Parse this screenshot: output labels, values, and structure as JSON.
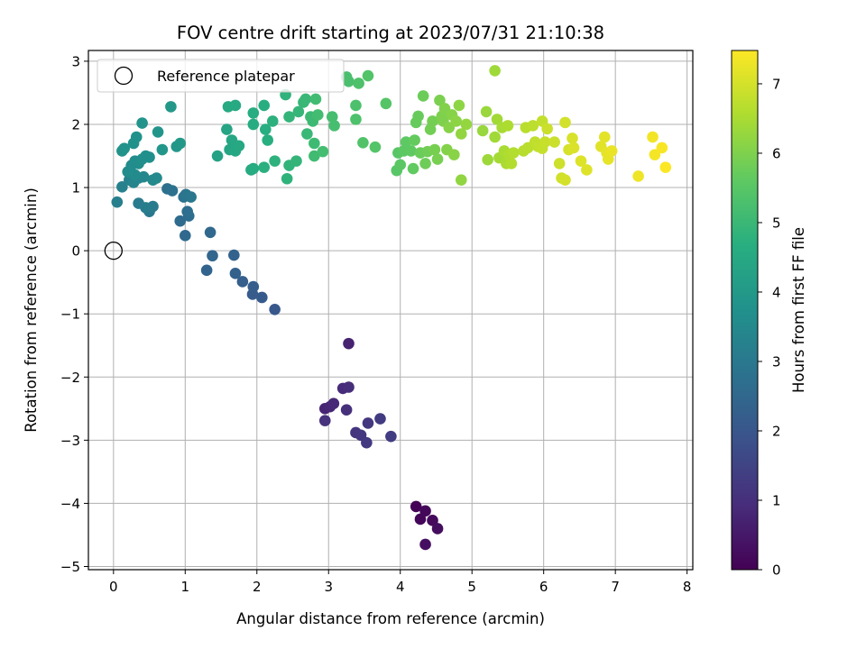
{
  "chart_data": {
    "type": "scatter",
    "title": "FOV centre drift starting at 2023/07/31 21:10:38",
    "xlabel": "Angular distance from reference (arcmin)",
    "ylabel": "Rotation from reference (arcmin)",
    "colorbar_label": "Hours from first FF file",
    "xlim": [
      -0.35,
      8.08
    ],
    "ylim": [
      -5.05,
      3.17
    ],
    "x_ticks": [
      0,
      1,
      2,
      3,
      4,
      5,
      6,
      7,
      8
    ],
    "y_ticks": [
      -5,
      -4,
      -3,
      -2,
      -1,
      0,
      1,
      2,
      3
    ],
    "colorbar_ticks": [
      0,
      1,
      2,
      3,
      4,
      5,
      6,
      7
    ],
    "colorbar_range": [
      0,
      7.48
    ],
    "colormap": "viridis",
    "grid": true,
    "legend": {
      "position": "top-left",
      "entries": [
        "Reference platepar"
      ]
    },
    "reference_point": {
      "x": 0,
      "y": 0
    },
    "points": [
      {
        "x": 4.22,
        "y": -4.05,
        "t": 0.05
      },
      {
        "x": 4.28,
        "y": -4.25,
        "t": 0.1
      },
      {
        "x": 4.35,
        "y": -4.12,
        "t": 0.15
      },
      {
        "x": 4.45,
        "y": -4.27,
        "t": 0.2
      },
      {
        "x": 4.52,
        "y": -4.4,
        "t": 0.25
      },
      {
        "x": 4.35,
        "y": -4.65,
        "t": 0.3
      },
      {
        "x": 3.28,
        "y": -1.47,
        "t": 0.7
      },
      {
        "x": 2.95,
        "y": -2.5,
        "t": 0.75
      },
      {
        "x": 3.02,
        "y": -2.47,
        "t": 0.8
      },
      {
        "x": 3.07,
        "y": -2.42,
        "t": 0.85
      },
      {
        "x": 3.2,
        "y": -2.18,
        "t": 0.9
      },
      {
        "x": 3.28,
        "y": -2.16,
        "t": 0.95
      },
      {
        "x": 3.25,
        "y": -2.52,
        "t": 1.0
      },
      {
        "x": 2.95,
        "y": -2.69,
        "t": 1.05
      },
      {
        "x": 3.38,
        "y": -2.88,
        "t": 1.1
      },
      {
        "x": 3.45,
        "y": -2.92,
        "t": 1.15
      },
      {
        "x": 3.55,
        "y": -2.73,
        "t": 1.2
      },
      {
        "x": 3.53,
        "y": -3.04,
        "t": 1.25
      },
      {
        "x": 3.72,
        "y": -2.66,
        "t": 1.3
      },
      {
        "x": 3.87,
        "y": -2.94,
        "t": 1.35
      },
      {
        "x": 2.25,
        "y": -0.93,
        "t": 2.05
      },
      {
        "x": 2.07,
        "y": -0.74,
        "t": 2.1
      },
      {
        "x": 1.94,
        "y": -0.69,
        "t": 2.15
      },
      {
        "x": 1.95,
        "y": -0.57,
        "t": 2.2
      },
      {
        "x": 1.8,
        "y": -0.49,
        "t": 2.25
      },
      {
        "x": 1.7,
        "y": -0.36,
        "t": 2.3
      },
      {
        "x": 1.68,
        "y": -0.07,
        "t": 2.35
      },
      {
        "x": 1.3,
        "y": -0.31,
        "t": 2.4
      },
      {
        "x": 1.38,
        "y": -0.08,
        "t": 2.45
      },
      {
        "x": 1.35,
        "y": 0.29,
        "t": 2.5
      },
      {
        "x": 1.0,
        "y": 0.24,
        "t": 2.55
      },
      {
        "x": 0.93,
        "y": 0.47,
        "t": 2.6
      },
      {
        "x": 1.05,
        "y": 0.55,
        "t": 2.65
      },
      {
        "x": 1.03,
        "y": 0.62,
        "t": 2.7
      },
      {
        "x": 0.75,
        "y": 0.98,
        "t": 2.75
      },
      {
        "x": 0.82,
        "y": 0.95,
        "t": 2.8
      },
      {
        "x": 0.98,
        "y": 0.85,
        "t": 2.85
      },
      {
        "x": 1.01,
        "y": 0.89,
        "t": 2.9
      },
      {
        "x": 1.08,
        "y": 0.85,
        "t": 2.95
      },
      {
        "x": 0.5,
        "y": 0.62,
        "t": 3.0
      },
      {
        "x": 0.55,
        "y": 0.7,
        "t": 3.05
      },
      {
        "x": 0.35,
        "y": 0.75,
        "t": 3.1
      },
      {
        "x": 0.45,
        "y": 0.68,
        "t": 3.15
      },
      {
        "x": 0.05,
        "y": 0.77,
        "t": 3.2
      },
      {
        "x": 0.12,
        "y": 1.01,
        "t": 3.25
      },
      {
        "x": 0.22,
        "y": 1.12,
        "t": 3.3
      },
      {
        "x": 0.28,
        "y": 1.08,
        "t": 3.35
      },
      {
        "x": 0.35,
        "y": 1.15,
        "t": 3.4
      },
      {
        "x": 0.42,
        "y": 1.17,
        "t": 3.45
      },
      {
        "x": 0.55,
        "y": 1.12,
        "t": 3.5
      },
      {
        "x": 0.6,
        "y": 1.15,
        "t": 3.52
      },
      {
        "x": 0.3,
        "y": 1.2,
        "t": 3.55
      },
      {
        "x": 0.2,
        "y": 1.25,
        "t": 3.58
      },
      {
        "x": 0.25,
        "y": 1.35,
        "t": 3.6
      },
      {
        "x": 0.3,
        "y": 1.42,
        "t": 3.62
      },
      {
        "x": 0.35,
        "y": 1.38,
        "t": 3.65
      },
      {
        "x": 0.4,
        "y": 1.45,
        "t": 3.68
      },
      {
        "x": 0.45,
        "y": 1.5,
        "t": 3.7
      },
      {
        "x": 0.5,
        "y": 1.48,
        "t": 3.72
      },
      {
        "x": 0.28,
        "y": 1.7,
        "t": 3.75
      },
      {
        "x": 0.32,
        "y": 1.8,
        "t": 3.78
      },
      {
        "x": 0.12,
        "y": 1.58,
        "t": 3.8
      },
      {
        "x": 0.15,
        "y": 1.62,
        "t": 3.82
      },
      {
        "x": 0.4,
        "y": 2.02,
        "t": 3.85
      },
      {
        "x": 0.62,
        "y": 1.88,
        "t": 3.88
      },
      {
        "x": 0.68,
        "y": 1.6,
        "t": 3.9
      },
      {
        "x": 0.88,
        "y": 1.65,
        "t": 3.92
      },
      {
        "x": 0.93,
        "y": 1.7,
        "t": 3.95
      },
      {
        "x": 0.8,
        "y": 2.28,
        "t": 3.98
      },
      {
        "x": 1.45,
        "y": 1.5,
        "t": 4.3
      },
      {
        "x": 1.58,
        "y": 1.92,
        "t": 4.35
      },
      {
        "x": 1.62,
        "y": 1.6,
        "t": 4.4
      },
      {
        "x": 1.65,
        "y": 1.75,
        "t": 4.42
      },
      {
        "x": 1.7,
        "y": 1.58,
        "t": 4.45
      },
      {
        "x": 1.75,
        "y": 1.66,
        "t": 4.48
      },
      {
        "x": 1.6,
        "y": 2.28,
        "t": 4.5
      },
      {
        "x": 1.7,
        "y": 2.3,
        "t": 4.52
      },
      {
        "x": 1.92,
        "y": 1.28,
        "t": 4.55
      },
      {
        "x": 1.95,
        "y": 1.3,
        "t": 4.58
      },
      {
        "x": 1.95,
        "y": 2.0,
        "t": 4.6
      },
      {
        "x": 1.95,
        "y": 2.18,
        "t": 4.62
      },
      {
        "x": 2.1,
        "y": 2.3,
        "t": 4.65
      },
      {
        "x": 2.12,
        "y": 1.92,
        "t": 4.68
      },
      {
        "x": 2.15,
        "y": 1.75,
        "t": 4.7
      },
      {
        "x": 2.1,
        "y": 1.32,
        "t": 4.72
      },
      {
        "x": 2.22,
        "y": 2.05,
        "t": 4.75
      },
      {
        "x": 2.25,
        "y": 1.42,
        "t": 4.78
      },
      {
        "x": 2.4,
        "y": 2.47,
        "t": 4.8
      },
      {
        "x": 2.42,
        "y": 1.14,
        "t": 4.82
      },
      {
        "x": 2.45,
        "y": 1.35,
        "t": 4.85
      },
      {
        "x": 2.45,
        "y": 2.12,
        "t": 4.88
      },
      {
        "x": 2.55,
        "y": 1.42,
        "t": 4.9
      },
      {
        "x": 2.58,
        "y": 2.2,
        "t": 4.92
      },
      {
        "x": 2.65,
        "y": 2.35,
        "t": 4.95
      },
      {
        "x": 2.68,
        "y": 2.4,
        "t": 4.98
      },
      {
        "x": 2.7,
        "y": 1.85,
        "t": 5.0
      },
      {
        "x": 2.75,
        "y": 2.12,
        "t": 5.02
      },
      {
        "x": 2.78,
        "y": 2.05,
        "t": 5.05
      },
      {
        "x": 2.8,
        "y": 1.7,
        "t": 5.08
      },
      {
        "x": 2.8,
        "y": 1.5,
        "t": 5.1
      },
      {
        "x": 2.82,
        "y": 2.4,
        "t": 5.12
      },
      {
        "x": 2.85,
        "y": 2.15,
        "t": 5.15
      },
      {
        "x": 2.92,
        "y": 1.57,
        "t": 5.18
      },
      {
        "x": 3.05,
        "y": 2.12,
        "t": 5.2
      },
      {
        "x": 3.08,
        "y": 1.98,
        "t": 5.22
      },
      {
        "x": 3.25,
        "y": 2.75,
        "t": 5.25
      },
      {
        "x": 3.28,
        "y": 2.68,
        "t": 5.28
      },
      {
        "x": 3.38,
        "y": 2.3,
        "t": 5.3
      },
      {
        "x": 3.38,
        "y": 2.08,
        "t": 5.32
      },
      {
        "x": 3.42,
        "y": 2.65,
        "t": 5.35
      },
      {
        "x": 3.48,
        "y": 1.71,
        "t": 5.38
      },
      {
        "x": 3.55,
        "y": 2.77,
        "t": 5.4
      },
      {
        "x": 3.65,
        "y": 1.64,
        "t": 5.42
      },
      {
        "x": 3.8,
        "y": 2.33,
        "t": 5.45
      },
      {
        "x": 3.95,
        "y": 1.27,
        "t": 5.5
      },
      {
        "x": 3.97,
        "y": 1.55,
        "t": 5.52
      },
      {
        "x": 4.0,
        "y": 1.36,
        "t": 5.55
      },
      {
        "x": 4.05,
        "y": 1.58,
        "t": 5.58
      },
      {
        "x": 4.08,
        "y": 1.72,
        "t": 5.6
      },
      {
        "x": 4.15,
        "y": 1.58,
        "t": 5.62
      },
      {
        "x": 4.18,
        "y": 1.3,
        "t": 5.65
      },
      {
        "x": 4.2,
        "y": 1.75,
        "t": 5.68
      },
      {
        "x": 4.22,
        "y": 2.03,
        "t": 5.7
      },
      {
        "x": 4.25,
        "y": 2.13,
        "t": 5.72
      },
      {
        "x": 4.28,
        "y": 1.55,
        "t": 5.75
      },
      {
        "x": 4.32,
        "y": 2.45,
        "t": 5.78
      },
      {
        "x": 4.35,
        "y": 1.38,
        "t": 5.8
      },
      {
        "x": 4.38,
        "y": 1.57,
        "t": 5.82
      },
      {
        "x": 4.42,
        "y": 1.92,
        "t": 5.85
      },
      {
        "x": 4.45,
        "y": 2.05,
        "t": 5.88
      },
      {
        "x": 4.48,
        "y": 1.6,
        "t": 5.9
      },
      {
        "x": 4.52,
        "y": 1.45,
        "t": 5.92
      },
      {
        "x": 4.55,
        "y": 2.38,
        "t": 5.95
      },
      {
        "x": 4.58,
        "y": 2.13,
        "t": 5.98
      },
      {
        "x": 4.6,
        "y": 2.05,
        "t": 6.0
      },
      {
        "x": 4.62,
        "y": 2.25,
        "t": 6.02
      },
      {
        "x": 4.65,
        "y": 1.6,
        "t": 6.05
      },
      {
        "x": 4.68,
        "y": 1.95,
        "t": 6.08
      },
      {
        "x": 4.72,
        "y": 2.15,
        "t": 6.1
      },
      {
        "x": 4.75,
        "y": 1.52,
        "t": 6.12
      },
      {
        "x": 4.78,
        "y": 2.05,
        "t": 6.15
      },
      {
        "x": 4.82,
        "y": 2.3,
        "t": 6.18
      },
      {
        "x": 4.85,
        "y": 1.12,
        "t": 6.2
      },
      {
        "x": 4.85,
        "y": 1.85,
        "t": 6.22
      },
      {
        "x": 4.92,
        "y": 2.0,
        "t": 6.25
      },
      {
        "x": 5.15,
        "y": 1.9,
        "t": 6.3
      },
      {
        "x": 5.2,
        "y": 2.2,
        "t": 6.32
      },
      {
        "x": 5.22,
        "y": 1.44,
        "t": 6.35
      },
      {
        "x": 5.32,
        "y": 2.85,
        "t": 6.38
      },
      {
        "x": 5.32,
        "y": 1.8,
        "t": 6.4
      },
      {
        "x": 5.35,
        "y": 2.08,
        "t": 6.42
      },
      {
        "x": 5.38,
        "y": 1.47,
        "t": 6.45
      },
      {
        "x": 5.42,
        "y": 1.95,
        "t": 6.48
      },
      {
        "x": 5.45,
        "y": 1.58,
        "t": 6.5
      },
      {
        "x": 5.48,
        "y": 1.38,
        "t": 6.52
      },
      {
        "x": 5.5,
        "y": 1.98,
        "t": 6.55
      },
      {
        "x": 5.52,
        "y": 1.52,
        "t": 6.58
      },
      {
        "x": 5.55,
        "y": 1.38,
        "t": 6.6
      },
      {
        "x": 5.58,
        "y": 1.55,
        "t": 6.62
      },
      {
        "x": 5.72,
        "y": 1.58,
        "t": 6.65
      },
      {
        "x": 5.75,
        "y": 1.95,
        "t": 6.68
      },
      {
        "x": 5.78,
        "y": 1.63,
        "t": 6.7
      },
      {
        "x": 5.85,
        "y": 1.98,
        "t": 6.72
      },
      {
        "x": 5.88,
        "y": 1.72,
        "t": 6.75
      },
      {
        "x": 5.92,
        "y": 1.65,
        "t": 6.78
      },
      {
        "x": 5.98,
        "y": 2.05,
        "t": 6.8
      },
      {
        "x": 5.98,
        "y": 1.62,
        "t": 6.82
      },
      {
        "x": 6.02,
        "y": 1.72,
        "t": 6.85
      },
      {
        "x": 6.05,
        "y": 1.93,
        "t": 6.88
      },
      {
        "x": 6.15,
        "y": 1.72,
        "t": 6.9
      },
      {
        "x": 6.22,
        "y": 1.38,
        "t": 6.92
      },
      {
        "x": 6.25,
        "y": 1.15,
        "t": 6.95
      },
      {
        "x": 6.3,
        "y": 2.03,
        "t": 6.98
      },
      {
        "x": 6.3,
        "y": 1.12,
        "t": 7.0
      },
      {
        "x": 6.35,
        "y": 1.6,
        "t": 7.02
      },
      {
        "x": 6.4,
        "y": 1.78,
        "t": 7.05
      },
      {
        "x": 6.42,
        "y": 1.63,
        "t": 7.08
      },
      {
        "x": 6.52,
        "y": 1.42,
        "t": 7.1
      },
      {
        "x": 6.6,
        "y": 1.28,
        "t": 7.12
      },
      {
        "x": 6.8,
        "y": 1.65,
        "t": 7.15
      },
      {
        "x": 6.85,
        "y": 1.8,
        "t": 7.18
      },
      {
        "x": 6.88,
        "y": 1.55,
        "t": 7.2
      },
      {
        "x": 6.9,
        "y": 1.45,
        "t": 7.22
      },
      {
        "x": 6.95,
        "y": 1.58,
        "t": 7.25
      },
      {
        "x": 7.32,
        "y": 1.18,
        "t": 7.3
      },
      {
        "x": 7.52,
        "y": 1.8,
        "t": 7.35
      },
      {
        "x": 7.55,
        "y": 1.52,
        "t": 7.38
      },
      {
        "x": 7.65,
        "y": 1.63,
        "t": 7.42
      },
      {
        "x": 7.7,
        "y": 1.32,
        "t": 7.46
      }
    ]
  }
}
